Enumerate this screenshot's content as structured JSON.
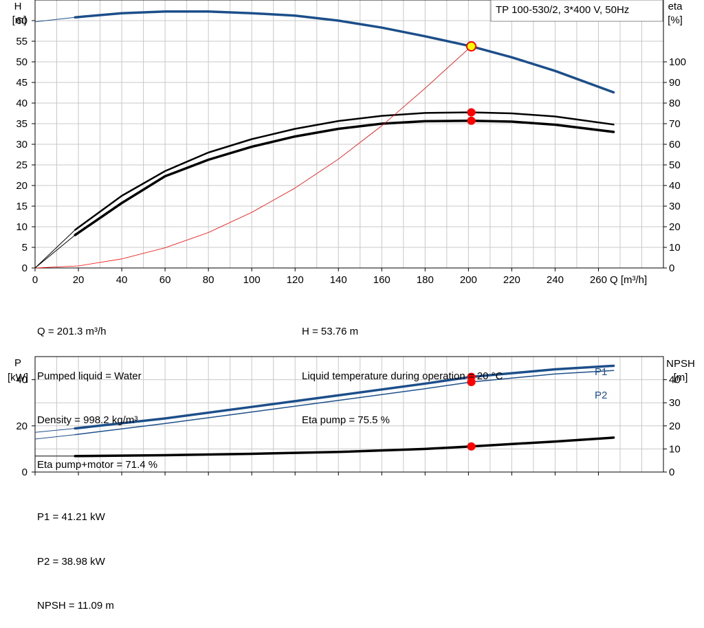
{
  "title_box": "TP 100-530/2, 3*400 V, 50Hz",
  "colors": {
    "blue": "#1c4f8a",
    "black": "#000000",
    "red": "#ff0000",
    "grid": "#c8c8c8",
    "marker_yellow": "#ffff00"
  },
  "info_top_left": [
    "Q = 201.3 m³/h",
    "Pumped liquid = Water",
    "Density = 998.2 kg/m³",
    "Eta pump+motor = 71.4 %"
  ],
  "info_top_right": [
    "H = 53.76 m",
    "Liquid temperature during operation = 20 °C",
    "Eta pump = 75.5 %"
  ],
  "info_bottom": [
    "P1 = 41.21 kW",
    "P2 = 38.98 kW",
    "NPSH = 11.09 m"
  ],
  "chart_data": [
    {
      "type": "line",
      "name": "head-efficiency",
      "xlabel": "Q [m³/h]",
      "ylabel_left": [
        "H",
        "[m]"
      ],
      "ylabel_right": [
        "eta",
        "[%]"
      ],
      "xlim": [
        0,
        290
      ],
      "ylim_left": [
        0,
        65
      ],
      "ylim_right": [
        0,
        130
      ],
      "x_ticks": [
        0,
        20,
        40,
        60,
        80,
        100,
        120,
        140,
        160,
        180,
        200,
        220,
        240,
        260
      ],
      "y_ticks_left": [
        0,
        5,
        10,
        15,
        20,
        25,
        30,
        35,
        40,
        45,
        50,
        55,
        60
      ],
      "y_ticks_right": [
        0,
        10,
        20,
        30,
        40,
        50,
        60,
        70,
        80,
        90,
        100
      ],
      "grid": true,
      "series": [
        {
          "axis": "left",
          "color": "#1c4f8a",
          "width": 3.5,
          "x": [
            0,
            18.5,
            40,
            60,
            80,
            100,
            120,
            140,
            160,
            180,
            201.3,
            220,
            240,
            267
          ],
          "y": [
            59.7,
            60.8,
            61.8,
            62.2,
            62.2,
            61.8,
            61.2,
            60.0,
            58.3,
            56.2,
            53.76,
            51.1,
            47.8,
            42.6
          ]
        },
        {
          "axis": "right",
          "color": "#000000",
          "width": 2.5,
          "x": [
            0,
            18.5,
            40,
            60,
            80,
            100,
            120,
            140,
            160,
            180,
            201.3,
            220,
            240,
            267
          ],
          "y": [
            0,
            18.5,
            35.0,
            47.0,
            56.0,
            62.5,
            67.5,
            71.3,
            73.8,
            75.2,
            75.5,
            75.0,
            73.5,
            69.6
          ]
        },
        {
          "axis": "right",
          "color": "#000000",
          "width": 3.5,
          "x": [
            0,
            18.5,
            40,
            60,
            80,
            100,
            120,
            140,
            160,
            180,
            201.3,
            220,
            240,
            267
          ],
          "y": [
            0,
            16.0,
            31.5,
            44.5,
            52.5,
            58.8,
            63.8,
            67.5,
            70.0,
            71.2,
            71.4,
            71.0,
            69.5,
            66.0
          ]
        },
        {
          "axis": "left",
          "color": "#ff0000",
          "width": 0.8,
          "x": [
            0,
            20,
            40,
            60,
            80,
            100,
            120,
            140,
            160,
            180,
            201.3
          ],
          "y": [
            0,
            0.5,
            2.2,
            4.9,
            8.6,
            13.5,
            19.4,
            26.4,
            34.5,
            43.6,
            53.76
          ]
        }
      ],
      "markers": [
        {
          "axis": "left",
          "x": 201.3,
          "y": 53.76,
          "style": "yellow"
        },
        {
          "axis": "right",
          "x": 201.3,
          "y": 75.5,
          "style": "red"
        },
        {
          "axis": "right",
          "x": 201.3,
          "y": 71.4,
          "style": "red"
        }
      ]
    },
    {
      "type": "line",
      "name": "power-npsh",
      "ylabel_left": [
        "P",
        "[kW]"
      ],
      "ylabel_right": [
        "NPSH",
        "[m]"
      ],
      "xlim": [
        0,
        290
      ],
      "ylim_left": [
        0,
        50
      ],
      "ylim_right": [
        0,
        50
      ],
      "y_ticks_left": [
        0,
        20,
        40
      ],
      "y_ticks_right": [
        0,
        10,
        20,
        30,
        40
      ],
      "grid": true,
      "series": [
        {
          "name": "P1",
          "axis": "left",
          "color": "#1c4f8a",
          "width": 3.5,
          "x": [
            0,
            18.5,
            60,
            100,
            140,
            180,
            201.3,
            240,
            267
          ],
          "y": [
            17.2,
            18.9,
            23.2,
            28.2,
            33.2,
            38.3,
            41.21,
            44.5,
            46.0
          ]
        },
        {
          "name": "P2",
          "axis": "left",
          "color": "#1c4f8a",
          "width": 1.5,
          "x": [
            0,
            18.5,
            60,
            100,
            140,
            180,
            201.3,
            240,
            267
          ],
          "y": [
            14.3,
            16.2,
            21.0,
            26.0,
            31.0,
            36.1,
            38.98,
            42.5,
            44.0
          ]
        },
        {
          "axis": "right",
          "color": "#000000",
          "width": 3.5,
          "x": [
            0,
            18.5,
            60,
            100,
            140,
            180,
            201.3,
            240,
            267
          ],
          "y": [
            6.9,
            6.9,
            7.3,
            7.9,
            8.7,
            10.0,
            11.09,
            13.2,
            14.9
          ]
        }
      ],
      "markers": [
        {
          "axis": "left",
          "x": 201.3,
          "y": 41.21,
          "style": "red"
        },
        {
          "axis": "left",
          "x": 201.3,
          "y": 38.98,
          "style": "red"
        },
        {
          "axis": "right",
          "x": 201.3,
          "y": 11.09,
          "style": "red"
        }
      ]
    }
  ]
}
